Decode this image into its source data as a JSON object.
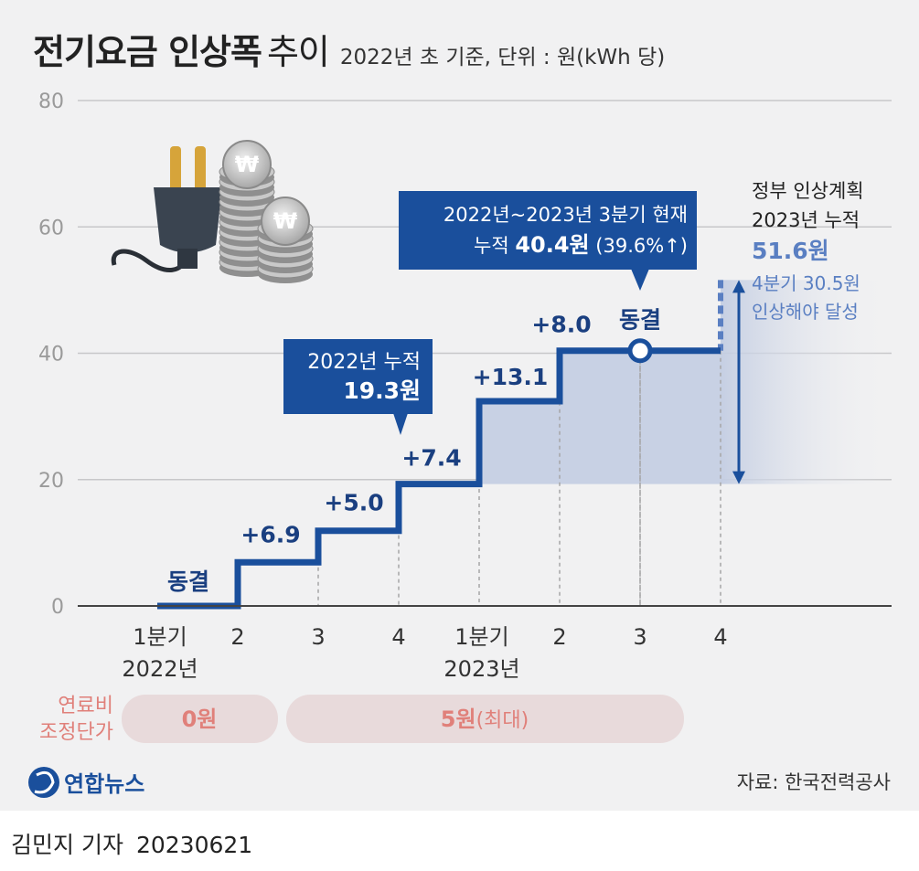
{
  "header": {
    "title_bold": "전기요금 인상폭",
    "title_light": "추이",
    "subtitle": "2022년 초 기준, 단위 : 원(kWh 당)"
  },
  "chart_data": {
    "type": "line",
    "step": true,
    "ylim": [
      0,
      80
    ],
    "yticks": [
      "0",
      "20",
      "40",
      "60",
      "80"
    ],
    "grid": true,
    "x_ticks": [
      {
        "line1": "1분기",
        "line2": "2022년"
      },
      {
        "line1": "2",
        "line2": ""
      },
      {
        "line1": "3",
        "line2": ""
      },
      {
        "line1": "4",
        "line2": ""
      },
      {
        "line1": "1분기",
        "line2": "2023년"
      },
      {
        "line1": "2",
        "line2": ""
      },
      {
        "line1": "3",
        "line2": ""
      },
      {
        "line1": "4",
        "line2": ""
      }
    ],
    "values": [
      0,
      6.9,
      11.9,
      19.3,
      32.4,
      40.4,
      40.4,
      40.4
    ],
    "step_labels": [
      "동결",
      "+6.9",
      "+5.0",
      "+7.4",
      "+13.1",
      "+8.0",
      "동결"
    ],
    "current_index": 6,
    "callout_2022": {
      "line1": "2022년 누적",
      "line2": "19.3원"
    },
    "callout_current": {
      "line1": "2022년~2023년 3분기 현재",
      "line2_pre": "누적 ",
      "line2_bold": "40.4원",
      "line2_post": " (39.6%↑)"
    },
    "plan": {
      "value": 51.6,
      "label1": "정부 인상계획",
      "label2": "2023년 누적",
      "label3": "51.6원",
      "label4": "4분기 30.5원",
      "label5": "인상해야 달성"
    },
    "colors": {
      "line": "#1a4f9c",
      "fill": "#c8d1e4",
      "plan": "#5a7fc2",
      "pill": "#e8dadb",
      "pill_text": "#e0807a",
      "label": "#1a3f80"
    }
  },
  "fuel_adjustment": {
    "label_line1": "연료비",
    "label_line2": "조정단가",
    "pill_2022": "0원",
    "pill_2023_bold": "5원",
    "pill_2023_rest": "(최대)"
  },
  "source": "자료: 한국전력공사",
  "logo_text": "연합뉴스",
  "credit": {
    "author": "김민지 기자",
    "date": "20230621"
  }
}
